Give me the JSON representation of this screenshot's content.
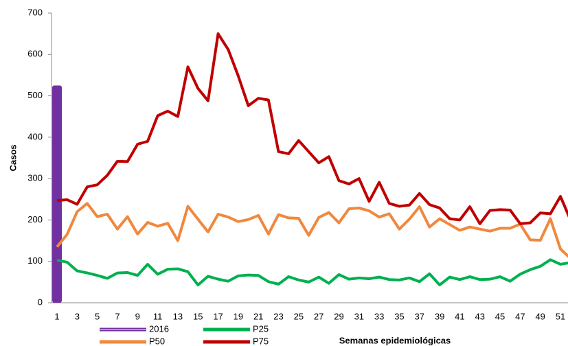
{
  "chart_data": {
    "type": "line",
    "y_label": "Casos",
    "x_label": "Semanas epidemiológicas",
    "categories": [
      1,
      null,
      3,
      null,
      5,
      null,
      7,
      null,
      9,
      null,
      11,
      null,
      13,
      null,
      15,
      null,
      17,
      null,
      19,
      null,
      21,
      null,
      23,
      null,
      25,
      null,
      27,
      null,
      29,
      null,
      31,
      null,
      33,
      null,
      35,
      null,
      37,
      null,
      39,
      null,
      41,
      null,
      43,
      null,
      45,
      null,
      47,
      null,
      49,
      null,
      51,
      null
    ],
    "ylim": [
      0,
      700
    ],
    "yticks": [
      0,
      100,
      200,
      300,
      400,
      500,
      600,
      700
    ],
    "series": [
      {
        "name": "2016",
        "color": "#7030a0",
        "kind": "bar",
        "values": [
          525,
          null,
          null,
          null,
          null,
          null,
          null,
          null,
          null,
          null,
          null,
          null,
          null,
          null,
          null,
          null,
          null,
          null,
          null,
          null,
          null,
          null,
          null,
          null,
          null,
          null,
          null,
          null,
          null,
          null,
          null,
          null,
          null,
          null,
          null,
          null,
          null,
          null,
          null,
          null,
          null,
          null,
          null,
          null,
          null,
          null,
          null,
          null,
          null,
          null,
          null,
          null
        ]
      },
      {
        "name": "P25",
        "color": "#00b050",
        "values": [
          103,
          98,
          77,
          72,
          66,
          59,
          72,
          73,
          66,
          93,
          69,
          81,
          82,
          75,
          43,
          64,
          57,
          52,
          65,
          67,
          66,
          51,
          45,
          63,
          55,
          50,
          62,
          47,
          68,
          57,
          60,
          58,
          62,
          56,
          55,
          60,
          51,
          70,
          43,
          62,
          56,
          63,
          56,
          57,
          63,
          52,
          69,
          80,
          88,
          104,
          93,
          97
        ]
      },
      {
        "name": "P50",
        "color": "#f0883e",
        "values": [
          135,
          165,
          220,
          240,
          208,
          214,
          178,
          208,
          166,
          194,
          185,
          192,
          150,
          233,
          202,
          171,
          214,
          207,
          196,
          201,
          211,
          166,
          213,
          205,
          204,
          163,
          206,
          218,
          193,
          227,
          229,
          222,
          207,
          215,
          178,
          202,
          232,
          183,
          203,
          189,
          175,
          183,
          178,
          173,
          180,
          180,
          190,
          152,
          151,
          203,
          130,
          107
        ]
      },
      {
        "name": "P75",
        "color": "#c00000",
        "values": [
          247,
          249,
          238,
          280,
          285,
          308,
          342,
          341,
          383,
          390,
          452,
          463,
          450,
          570,
          518,
          488,
          650,
          612,
          548,
          476,
          494,
          490,
          365,
          360,
          392,
          365,
          338,
          353,
          295,
          287,
          300,
          245,
          291,
          240,
          233,
          236,
          264,
          237,
          229,
          203,
          200,
          232,
          191,
          223,
          225,
          224,
          191,
          193,
          217,
          215,
          257,
          200
        ]
      }
    ]
  }
}
